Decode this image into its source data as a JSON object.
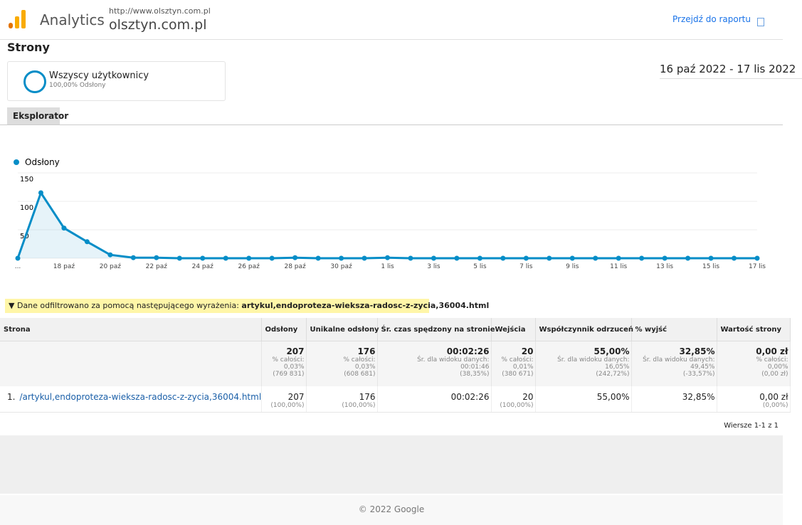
{
  "header": {
    "product": "Analytics",
    "url": "http://www.olsztyn.com.pl",
    "site": "olsztyn.com.pl",
    "report_link": "Przejdź do raportu"
  },
  "page_title": "Strony",
  "segment": {
    "name": "Wszyscy użytkownicy",
    "detail": "100,00% Odsłony"
  },
  "date_range": "16 paź 2022 - 17 lis 2022",
  "tab": "Eksplorator",
  "chart_data": {
    "type": "line",
    "categories": [
      "...",
      null,
      "18 paź",
      null,
      "20 paź",
      null,
      "22 paź",
      null,
      "24 paź",
      null,
      "26 paź",
      null,
      "28 paź",
      null,
      "30 paź",
      null,
      "1 lis",
      null,
      "3 lis",
      null,
      "5 lis",
      null,
      "7 lis",
      null,
      "9 lis",
      null,
      "11 lis",
      null,
      "13 lis",
      null,
      "15 lis",
      null,
      "17 lis"
    ],
    "series": [
      {
        "name": "Odsłony",
        "color": "#058dc7",
        "values": [
          0,
          115,
          53,
          29,
          6,
          1,
          1,
          0,
          0,
          0,
          0,
          0,
          1,
          0,
          0,
          0,
          1,
          0,
          0,
          0,
          0,
          0,
          0,
          0,
          0,
          0,
          0,
          0,
          0,
          0,
          0,
          0,
          0
        ]
      }
    ],
    "ylim": [
      0,
      150
    ],
    "yticks": [
      50,
      100,
      150
    ],
    "grid": true
  },
  "filter": {
    "text": "Dane odfiltrowano za pomocą następującego wyrażenia:",
    "expression": "artykul,endoproteza-wieksza-radosc-z-zycia,36004.html"
  },
  "table": {
    "headers": [
      "Strona",
      "Odsłony",
      "Unikalne odsłony",
      "Śr. czas spędzony na stronie",
      "Wejścia",
      "Współczynnik odrzuceń",
      "% wyjść",
      "Wartość strony"
    ],
    "totals": [
      [
        "207",
        "% całości:",
        "0,03%",
        "(769 831)"
      ],
      [
        "176",
        "% całości:",
        "0,03%",
        "(608 681)"
      ],
      [
        "00:02:26",
        "Śr. dla widoku danych:",
        "00:01:46",
        "(38,35%)"
      ],
      [
        "20",
        "% całości:",
        "0,01%",
        "(380 671)"
      ],
      [
        "55,00%",
        "Śr. dla widoku danych:",
        "16,05%",
        "(242,72%)"
      ],
      [
        "32,85%",
        "Śr. dla widoku danych:",
        "49,45%",
        "(-33,57%)"
      ],
      [
        "0,00 zł",
        "% całości:",
        "0,00%",
        "(0,00 zł)"
      ]
    ],
    "rows": [
      {
        "index": "1.",
        "page": "/artykul,endoproteza-wieksza-radosc-z-zycia,36004.html",
        "cells": [
          [
            "207",
            "(100,00%)"
          ],
          [
            "176",
            "(100,00%)"
          ],
          [
            "00:02:26"
          ],
          [
            "20",
            "(100,00%)"
          ],
          [
            "55,00%"
          ],
          [
            "32,85%"
          ],
          [
            "0,00 zł",
            "(0,00%)"
          ]
        ]
      }
    ],
    "pagination": "Wiersze 1-1 z 1"
  },
  "footer": "© 2022 Google"
}
